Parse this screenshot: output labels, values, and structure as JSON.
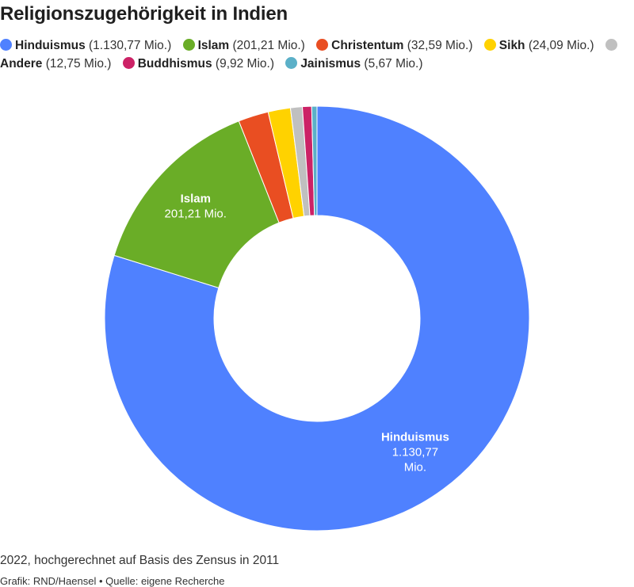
{
  "title": "Religionszugehörigkeit in Indien",
  "note": "2022, hochgerechnet auf Basis des Zensus in 2011",
  "source": "Grafik: RND/Haensel • Quelle: eigene Recherche",
  "chart_data": {
    "type": "pie",
    "donut": true,
    "unit": "Mio.",
    "legend_position": "top",
    "slices": [
      {
        "name": "Hinduismus",
        "value": 1130.77,
        "value_label": "1.130,77 Mio.",
        "color": "#4f81ff"
      },
      {
        "name": "Islam",
        "value": 201.21,
        "value_label": "201,21 Mio.",
        "color": "#6aad27"
      },
      {
        "name": "Christentum",
        "value": 32.59,
        "value_label": "32,59 Mio.",
        "color": "#e94e22"
      },
      {
        "name": "Sikh",
        "value": 24.09,
        "value_label": "24,09 Mio.",
        "color": "#ffd200"
      },
      {
        "name": "Andere",
        "value": 12.75,
        "value_label": "12,75 Mio.",
        "color": "#c0c0c0"
      },
      {
        "name": "Buddhismus",
        "value": 9.92,
        "value_label": "9,92 Mio.",
        "color": "#cc2266"
      },
      {
        "name": "Jainismus",
        "value": 5.67,
        "value_label": "5,67 Mio.",
        "color": "#5bb0c8"
      }
    ],
    "slice_labels": [
      {
        "slice": "Hinduismus",
        "name": "Hinduismus",
        "value_lines": [
          "1.130,77",
          "Mio."
        ]
      },
      {
        "slice": "Islam",
        "name": "Islam",
        "value_lines": [
          "201,21 Mio."
        ]
      }
    ]
  }
}
